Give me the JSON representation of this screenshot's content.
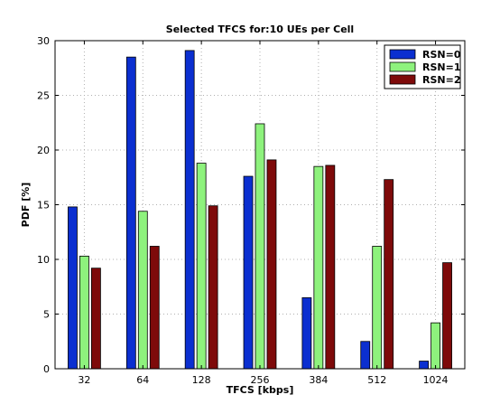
{
  "chart_data": {
    "type": "bar",
    "title": "Selected TFCS for:10 UEs per Cell",
    "xlabel": "TFCS [kbps]",
    "ylabel": "PDF [%]",
    "categories": [
      "32",
      "64",
      "128",
      "256",
      "384",
      "512",
      "1024"
    ],
    "series": [
      {
        "name": "RSN=0",
        "color": "#0b2fd0",
        "values": [
          14.8,
          28.5,
          29.1,
          17.6,
          6.5,
          2.5,
          0.7
        ]
      },
      {
        "name": "RSN=1",
        "color": "#8ef27d",
        "values": [
          10.3,
          14.4,
          18.8,
          22.4,
          18.5,
          11.2,
          4.2
        ]
      },
      {
        "name": "RSN=2",
        "color": "#7e0a0a",
        "values": [
          9.2,
          11.2,
          14.9,
          19.1,
          18.6,
          17.3,
          9.7
        ]
      }
    ],
    "ylim": [
      0,
      30
    ],
    "yticks": [
      0,
      5,
      10,
      15,
      20,
      25,
      30
    ],
    "grid": true,
    "legend_position": "top-right"
  }
}
